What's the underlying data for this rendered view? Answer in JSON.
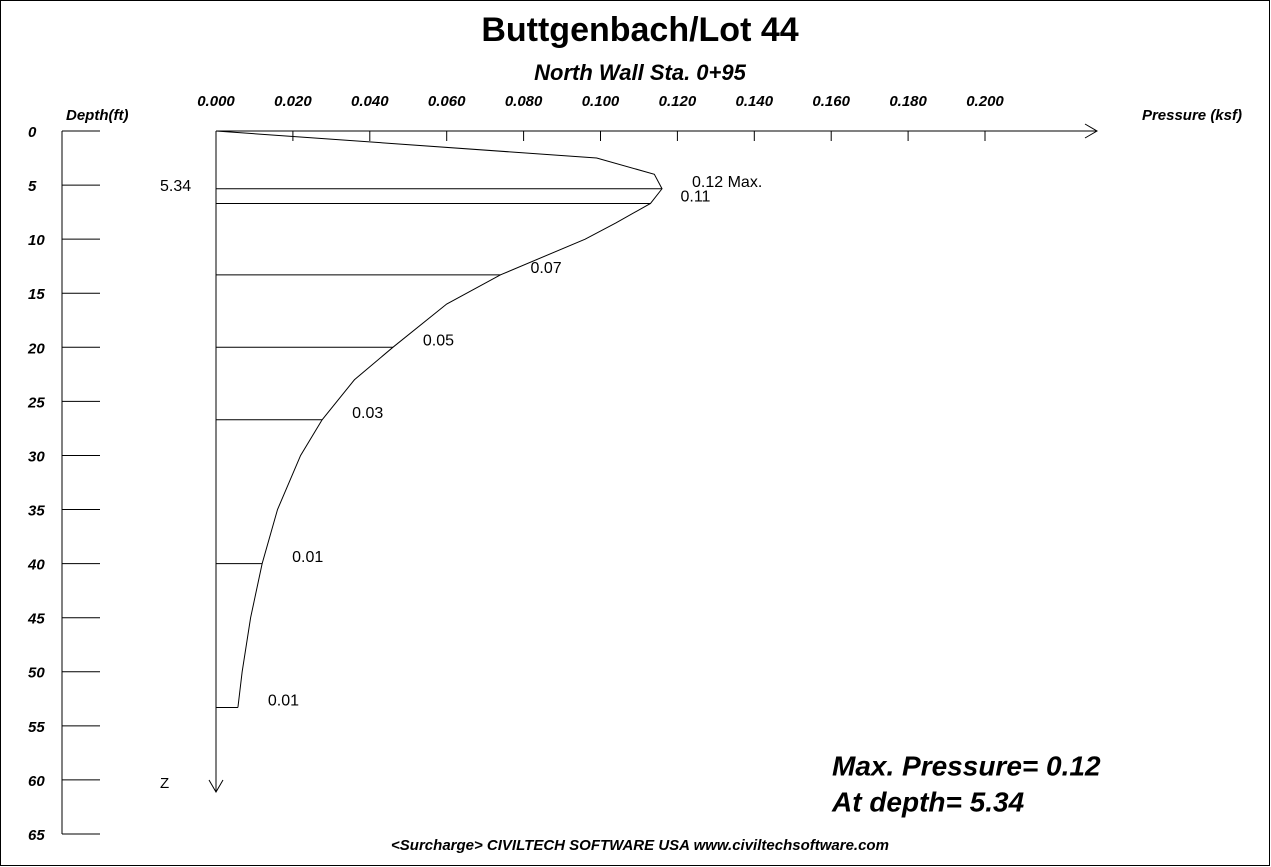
{
  "chart_data": {
    "type": "pressure-profile",
    "title": "Buttgenbach/Lot 44",
    "subtitle": "North Wall Sta. 0+95",
    "y_label": "Depth(ft)",
    "x_label": "Pressure (ksf)",
    "z_label": "Z",
    "xlim": [
      0,
      0.2
    ],
    "xticks": [
      {
        "value": 0,
        "label": "0.000"
      },
      {
        "value": 0.02,
        "label": "0.020"
      },
      {
        "value": 0.04,
        "label": "0.040"
      },
      {
        "value": 0.06,
        "label": "0.060"
      },
      {
        "value": 0.08,
        "label": "0.080"
      },
      {
        "value": 0.1,
        "label": "0.100"
      },
      {
        "value": 0.12,
        "label": "0.120"
      },
      {
        "value": 0.14,
        "label": "0.140"
      },
      {
        "value": 0.16,
        "label": "0.160"
      },
      {
        "value": 0.18,
        "label": "0.180"
      },
      {
        "value": 0.2,
        "label": "0.200"
      }
    ],
    "ylim": [
      0,
      65
    ],
    "yticks": [
      0,
      5,
      10,
      15,
      20,
      25,
      30,
      35,
      40,
      45,
      50,
      55,
      60,
      65
    ],
    "curve": {
      "depth": [
        0,
        2.5,
        4,
        5.34,
        6.7,
        8.5,
        10,
        13.3,
        16,
        20,
        23,
        26.7,
        30,
        35,
        40,
        45,
        50,
        53.3
      ],
      "pressure": [
        0,
        0.099,
        0.114,
        0.116,
        0.113,
        0.104,
        0.096,
        0.074,
        0.06,
        0.046,
        0.036,
        0.0276,
        0.022,
        0.016,
        0.012,
        0.009,
        0.0068,
        0.0057
      ]
    },
    "levels": [
      {
        "depth": 5.34,
        "pressure": 0.116,
        "label": "0.12 Max.",
        "depth_label": "5.34"
      },
      {
        "depth": 6.7,
        "pressure": 0.113,
        "label": "0.11"
      },
      {
        "depth": 13.3,
        "pressure": 0.074,
        "label": "0.07"
      },
      {
        "depth": 20,
        "pressure": 0.046,
        "label": "0.05"
      },
      {
        "depth": 26.7,
        "pressure": 0.0276,
        "label": "0.03"
      },
      {
        "depth": 40,
        "pressure": 0.012,
        "label": "0.01"
      },
      {
        "depth": 53.3,
        "pressure": 0.0057,
        "label": "0.01"
      }
    ],
    "annotations": [
      "Max. Pressure= 0.12",
      "At depth= 5.34"
    ],
    "footer": "<Surcharge> CIVILTECH SOFTWARE USA  www.civiltechsoftware.com"
  }
}
